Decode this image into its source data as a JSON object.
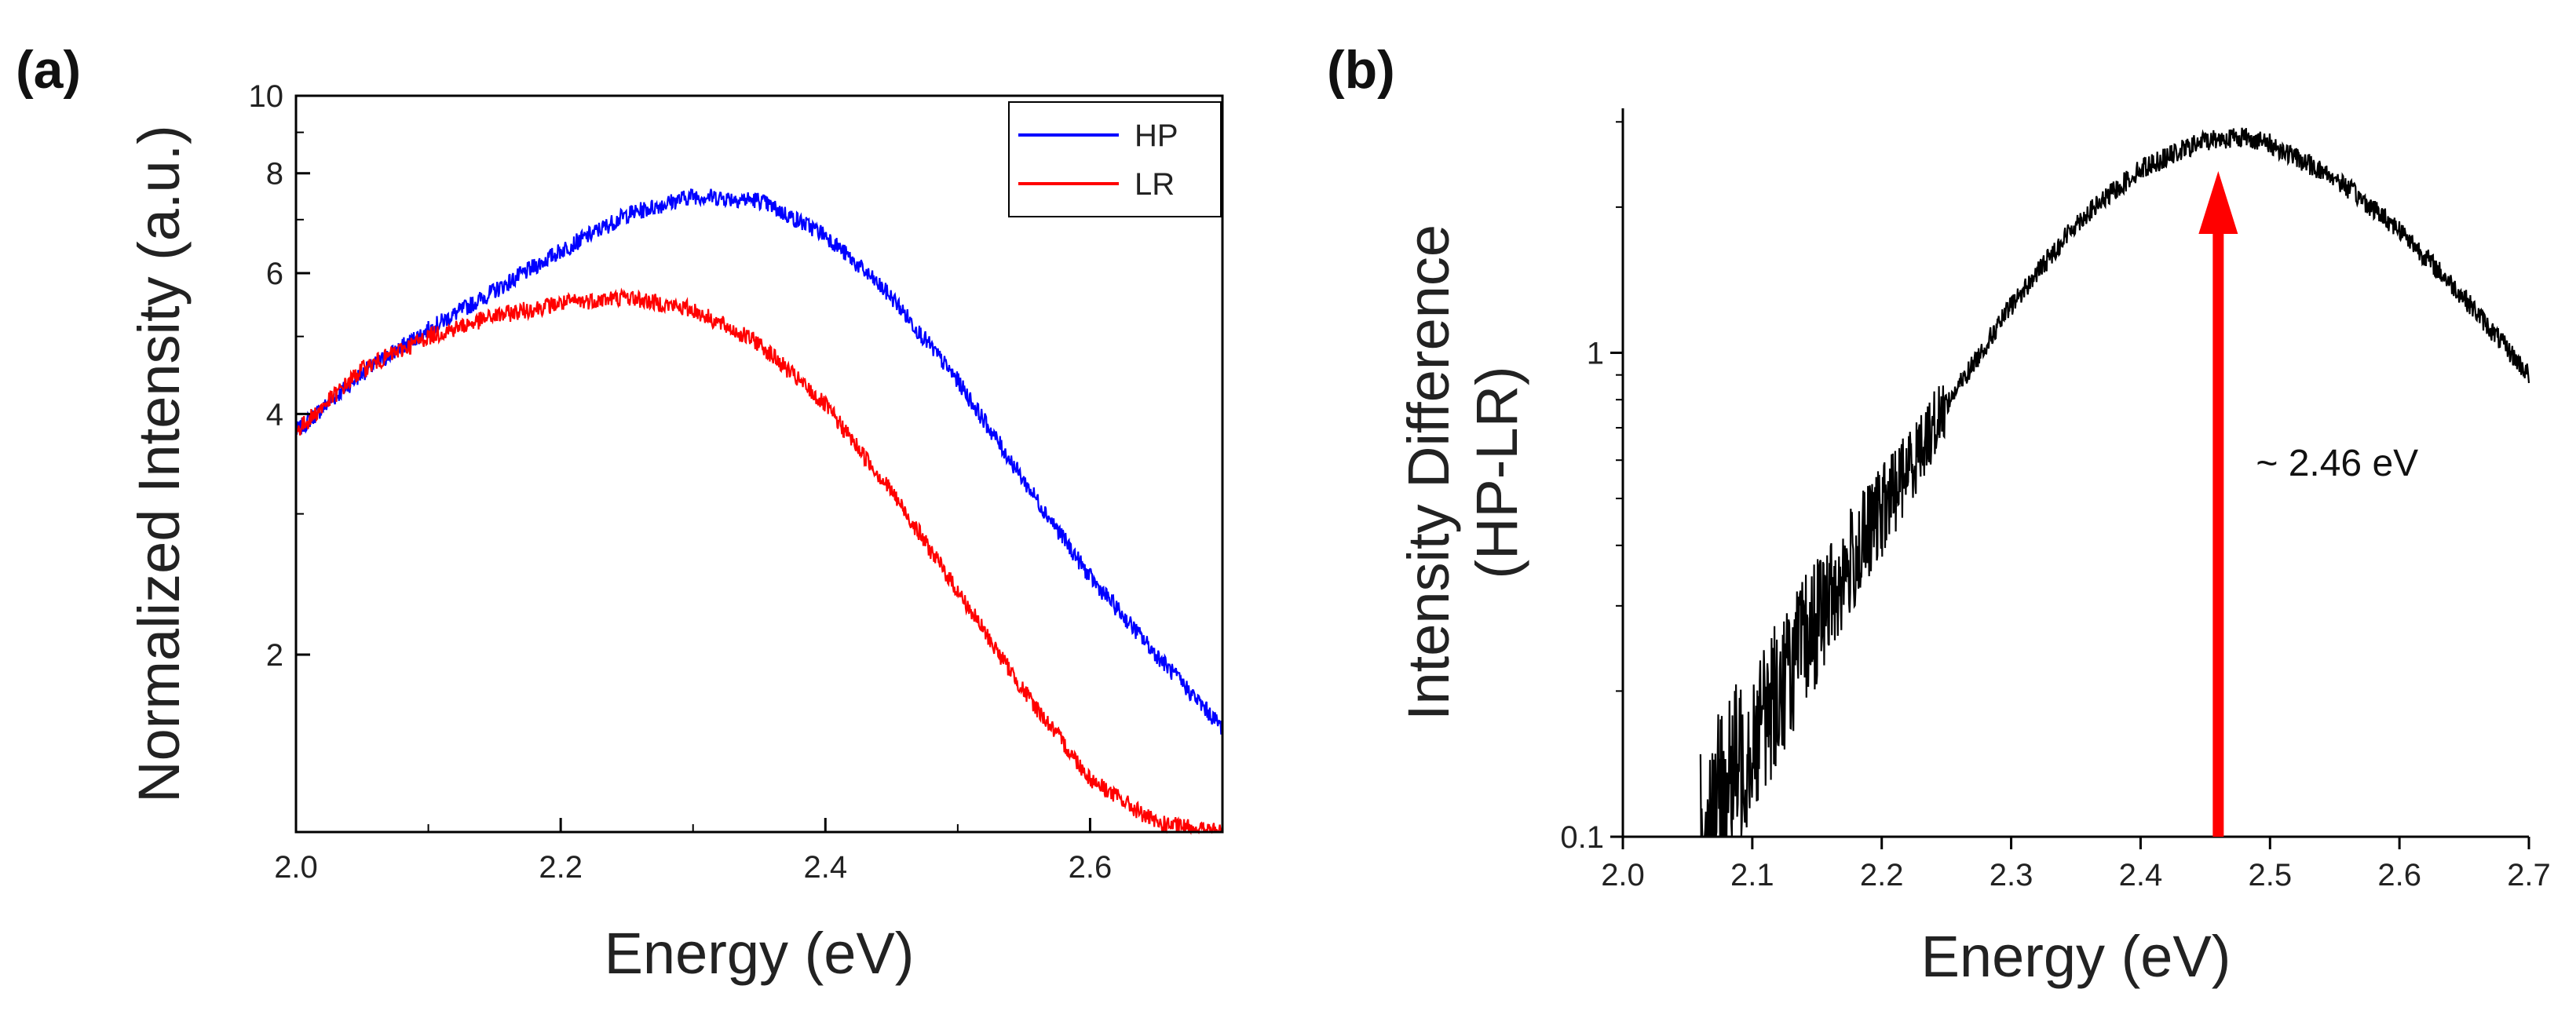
{
  "chart_data": [
    {
      "panel_label": "(a)",
      "type": "line",
      "xlabel": "Energy (eV)",
      "ylabel": "Normalized Intensity (a.u.)",
      "xlim": [
        2.0,
        2.7
      ],
      "ylim": [
        1.2,
        10
      ],
      "yscale": "log",
      "xticks": [
        2.0,
        2.2,
        2.4,
        2.6
      ],
      "xtick_labels": [
        "2.0",
        "2.2",
        "2.4",
        "2.6"
      ],
      "yticks_major": [
        2,
        4,
        6,
        8,
        10
      ],
      "ytick_labels": [
        "2",
        "4",
        "6",
        "8",
        "10"
      ],
      "legend_position": "top-right",
      "series": [
        {
          "name": "HP",
          "color": "#0000ff",
          "x": [
            2.0,
            2.05,
            2.1,
            2.15,
            2.2,
            2.25,
            2.3,
            2.35,
            2.4,
            2.45,
            2.5,
            2.55,
            2.6,
            2.65,
            2.7
          ],
          "y": [
            3.8,
            4.5,
            5.1,
            5.7,
            6.4,
            7.1,
            7.5,
            7.4,
            6.7,
            5.6,
            4.4,
            3.3,
            2.5,
            2.0,
            1.62
          ]
        },
        {
          "name": "LR",
          "color": "#ff0000",
          "x": [
            2.0,
            2.05,
            2.1,
            2.15,
            2.2,
            2.25,
            2.3,
            2.35,
            2.4,
            2.45,
            2.5,
            2.55,
            2.6,
            2.65,
            2.7
          ],
          "y": [
            3.8,
            4.55,
            5.0,
            5.3,
            5.5,
            5.6,
            5.4,
            4.9,
            4.1,
            3.2,
            2.4,
            1.8,
            1.4,
            1.23,
            1.2
          ]
        }
      ]
    },
    {
      "panel_label": "(b)",
      "type": "line",
      "xlabel": "Energy (eV)",
      "ylabel_lines": [
        "Intensity Difference",
        "(HP-LR)"
      ],
      "xlim": [
        2.0,
        2.7
      ],
      "ylim": [
        0.1,
        3.2
      ],
      "yscale": "log",
      "xticks": [
        2.0,
        2.1,
        2.2,
        2.3,
        2.4,
        2.5,
        2.6,
        2.7
      ],
      "xtick_labels": [
        "2.0",
        "2.1",
        "2.2",
        "2.3",
        "2.4",
        "2.5",
        "2.6",
        "2.7"
      ],
      "yticks_major": [
        0.1,
        1
      ],
      "ytick_labels": [
        "0.1",
        "1"
      ],
      "series": [
        {
          "color": "#000000",
          "x": [
            2.06,
            2.1,
            2.15,
            2.2,
            2.25,
            2.3,
            2.35,
            2.4,
            2.45,
            2.48,
            2.5,
            2.55,
            2.6,
            2.65,
            2.7
          ],
          "y": [
            0.1,
            0.16,
            0.28,
            0.47,
            0.78,
            1.25,
            1.85,
            2.4,
            2.75,
            2.8,
            2.7,
            2.3,
            1.8,
            1.3,
            0.9
          ]
        }
      ],
      "annotation": {
        "text": "~ 2.46 eV",
        "arrow_x": 2.46,
        "arrow_color": "#ff0000"
      }
    }
  ]
}
